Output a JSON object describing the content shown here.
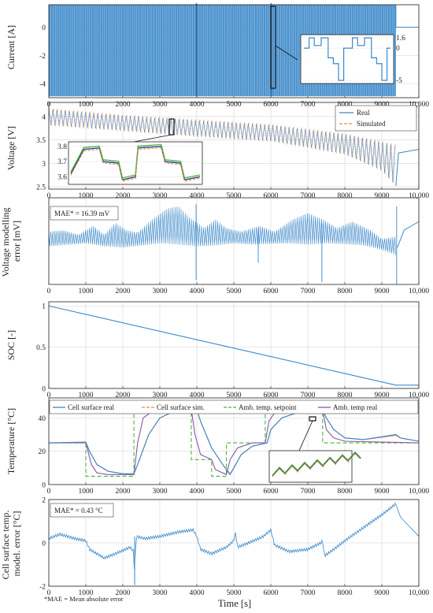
{
  "x_axis": {
    "label": "Time [s]",
    "range": [
      0,
      10000
    ],
    "ticks": [
      0,
      1000,
      2000,
      3000,
      4000,
      5000,
      6000,
      7000,
      8000,
      9000,
      10000
    ],
    "tick_labels": [
      "0",
      "1000",
      "2000",
      "3000",
      "4000",
      "5000",
      "6000",
      "7000",
      "8000",
      "9000",
      "10,000"
    ]
  },
  "footnote": "*MAE = Mean absolute error",
  "colors": {
    "real": "#3a87c9",
    "simulated": "#e8894f",
    "ambient_setpoint": "#49b33a",
    "ambient_real": "#8a55a7",
    "marker": "#111111"
  },
  "chart_data": [
    {
      "id": "current",
      "type": "line",
      "ylabel": "Current [A]",
      "ylim": [
        -5,
        1.6
      ],
      "yticks": [
        0,
        -2,
        -4
      ],
      "grid": true,
      "series": [
        {
          "name": "",
          "color": "#3a87c9",
          "points": [
            [
              0,
              1.6
            ],
            [
              9380,
              1.6
            ],
            [
              9380,
              0
            ],
            [
              10000,
              0
            ]
          ]
        }
      ],
      "profile": {
        "type": "pulsed_cycles",
        "x_end": 9380,
        "period_s": 58,
        "levels": [
          1.6,
          0,
          -1.5,
          -5
        ]
      },
      "inset": {
        "yticks": [
          1.6,
          0,
          -5
        ],
        "ytick_labels": [
          "1.6",
          "0",
          "-5"
        ],
        "zoom_x": [
          6040,
          6140
        ]
      }
    },
    {
      "id": "voltage",
      "type": "line",
      "ylabel": "Voltage [V]",
      "ylim": [
        2.45,
        4.3
      ],
      "yticks": [
        2.5,
        3,
        3.5,
        4
      ],
      "ytick_labels": [
        "2.5",
        "3",
        "3.5",
        "4"
      ],
      "grid": true,
      "legend": {
        "placement": "top-right",
        "entries": [
          "Real",
          "Simulated"
        ]
      },
      "series": [
        {
          "name": "Real",
          "color": "#3a87c9",
          "envelope_upper": [
            [
              0,
              4.16
            ],
            [
              2000,
              4.02
            ],
            [
              4000,
              3.92
            ],
            [
              6000,
              3.82
            ],
            [
              8000,
              3.62
            ],
            [
              9000,
              3.45
            ],
            [
              9380,
              3.38
            ]
          ],
          "envelope_lower": [
            [
              0,
              3.82
            ],
            [
              2000,
              3.7
            ],
            [
              4000,
              3.58
            ],
            [
              6000,
              3.48
            ],
            [
              8000,
              3.2
            ],
            [
              9000,
              2.85
            ],
            [
              9380,
              2.52
            ]
          ],
          "rest_points": [
            [
              9380,
              2.52
            ],
            [
              9450,
              3.22
            ],
            [
              10000,
              3.3
            ]
          ]
        },
        {
          "name": "Simulated",
          "color": "#e8894f"
        }
      ],
      "inset": {
        "yticks": [
          3.8,
          3.7,
          3.6
        ],
        "ytick_labels": [
          "3.8",
          "3.7",
          "3.6"
        ],
        "zoom_x": [
          3300,
          3400
        ],
        "real": [
          [
            0,
            3.62
          ],
          [
            0.1,
            3.78
          ],
          [
            0.22,
            3.79
          ],
          [
            0.25,
            3.7
          ],
          [
            0.37,
            3.69
          ],
          [
            0.4,
            3.58
          ],
          [
            0.5,
            3.6
          ],
          [
            0.52,
            3.79
          ],
          [
            0.7,
            3.8
          ],
          [
            0.73,
            3.7
          ],
          [
            0.85,
            3.69
          ],
          [
            0.88,
            3.58
          ],
          [
            1,
            3.6
          ]
        ]
      }
    },
    {
      "id": "voltage_error",
      "type": "line",
      "ylabel": "Voltage modelling error [mV]",
      "grid": true,
      "annotation": "MAE* = 16.39 mV",
      "envelope_upper": [
        [
          0,
          0.22
        ],
        [
          400,
          0.25
        ],
        [
          800,
          0.15
        ],
        [
          1200,
          0.35
        ],
        [
          1500,
          0.15
        ],
        [
          1800,
          0.42
        ],
        [
          2100,
          0.25
        ],
        [
          2400,
          0.2
        ],
        [
          2800,
          0.5
        ],
        [
          3200,
          0.75
        ],
        [
          3500,
          0.8
        ],
        [
          3800,
          0.55
        ],
        [
          4200,
          0.3
        ],
        [
          4500,
          0.5
        ],
        [
          4800,
          0.3
        ],
        [
          5200,
          0.22
        ],
        [
          5700,
          0.35
        ],
        [
          6100,
          0.22
        ],
        [
          6600,
          0.5
        ],
        [
          7000,
          0.65
        ],
        [
          7400,
          0.5
        ],
        [
          7800,
          0.3
        ],
        [
          8200,
          0.45
        ],
        [
          8700,
          0.25
        ],
        [
          9000,
          0.05
        ],
        [
          9380,
          0.1
        ]
      ],
      "envelope_lower": [
        [
          0,
          -0.12
        ],
        [
          600,
          -0.08
        ],
        [
          1000,
          -0.05
        ],
        [
          1500,
          -0.12
        ],
        [
          2000,
          -0.15
        ],
        [
          2500,
          -0.1
        ],
        [
          3000,
          -0.05
        ],
        [
          3500,
          -0.08
        ],
        [
          4000,
          -0.12
        ],
        [
          4500,
          -0.1
        ],
        [
          5000,
          -0.05
        ],
        [
          5500,
          -0.08
        ],
        [
          6000,
          -0.06
        ],
        [
          6500,
          -0.05
        ],
        [
          7000,
          -0.08
        ],
        [
          7500,
          -0.05
        ],
        [
          8000,
          -0.07
        ],
        [
          8500,
          -0.1
        ],
        [
          9000,
          -0.2
        ],
        [
          9380,
          -0.32
        ]
      ],
      "rest_points": [
        [
          9420,
          -0.15
        ],
        [
          9600,
          0.25
        ],
        [
          10000,
          0.45
        ]
      ]
    },
    {
      "id": "soc",
      "type": "line",
      "ylabel": "SOC [-]",
      "ylim": [
        0,
        1.05
      ],
      "yticks": [
        0,
        0.5,
        1
      ],
      "ytick_labels": [
        "0",
        "0.5",
        "1"
      ],
      "grid": true,
      "series": [
        {
          "name": "",
          "color": "#3a87c9",
          "points": [
            [
              0,
              1.0
            ],
            [
              9380,
              0.04
            ],
            [
              10000,
              0.04
            ]
          ]
        }
      ]
    },
    {
      "id": "temperature",
      "type": "line",
      "ylabel": "Temperature [°C]",
      "ylim": [
        0,
        52
      ],
      "yticks": [
        0,
        20,
        40
      ],
      "ytick_labels": [
        "0",
        "20",
        "40"
      ],
      "grid": true,
      "legend": {
        "placement": "top",
        "entries": [
          "Cell surface real",
          "Cell surface sim.",
          "Amb. temp. setpoint",
          "Amb. temp real"
        ]
      },
      "series": [
        {
          "name": "Cell surface real",
          "color": "#3a87c9",
          "points": [
            [
              0,
              25
            ],
            [
              1000,
              25.5
            ],
            [
              1100,
              20
            ],
            [
              1300,
              12
            ],
            [
              1600,
              8
            ],
            [
              2000,
              6.5
            ],
            [
              2300,
              6.5
            ],
            [
              2400,
              12
            ],
            [
              2700,
              30
            ],
            [
              3000,
              40
            ],
            [
              3400,
              44
            ],
            [
              3800,
              45
            ],
            [
              4000,
              45
            ],
            [
              4100,
              38
            ],
            [
              4400,
              22
            ],
            [
              4700,
              12
            ],
            [
              4900,
              6
            ],
            [
              5000,
              10
            ],
            [
              5200,
              18
            ],
            [
              5500,
              23
            ],
            [
              5900,
              25
            ],
            [
              6000,
              33
            ],
            [
              6300,
              40
            ],
            [
              6700,
              43
            ],
            [
              7200,
              44.5
            ],
            [
              7400,
              45
            ],
            [
              7500,
              40
            ],
            [
              7700,
              33
            ],
            [
              8000,
              28
            ],
            [
              8500,
              27
            ],
            [
              9380,
              30
            ],
            [
              9500,
              28
            ],
            [
              10000,
              26
            ]
          ]
        },
        {
          "name": "Cell surface sim.",
          "color": "#e8894f",
          "points": [
            [
              0,
              25
            ],
            [
              1000,
              25.3
            ],
            [
              1100,
              20
            ],
            [
              1300,
              12
            ],
            [
              1600,
              8
            ],
            [
              2000,
              6.5
            ],
            [
              2300,
              6.5
            ],
            [
              2400,
              12
            ],
            [
              2700,
              30
            ],
            [
              3000,
              40
            ],
            [
              3400,
              44
            ],
            [
              3800,
              45
            ],
            [
              4000,
              45
            ],
            [
              4100,
              38
            ],
            [
              4400,
              22
            ],
            [
              4700,
              12
            ],
            [
              4900,
              6.5
            ],
            [
              5000,
              10
            ],
            [
              5200,
              18
            ],
            [
              5500,
              23
            ],
            [
              5900,
              25
            ],
            [
              6000,
              33
            ],
            [
              6300,
              40
            ],
            [
              6700,
              43
            ],
            [
              7200,
              44.5
            ],
            [
              7400,
              45
            ],
            [
              7500,
              40
            ],
            [
              7700,
              33
            ],
            [
              8000,
              28
            ],
            [
              8500,
              27
            ],
            [
              9380,
              29.5
            ],
            [
              9500,
              28
            ],
            [
              10000,
              26
            ]
          ]
        },
        {
          "name": "Amb. temp. setpoint",
          "color": "#49b33a",
          "dashed": true,
          "points": [
            [
              0,
              25
            ],
            [
              1000,
              25
            ],
            [
              1000,
              5
            ],
            [
              2300,
              5
            ],
            [
              2300,
              45
            ],
            [
              3850,
              45
            ],
            [
              3850,
              15
            ],
            [
              4400,
              15
            ],
            [
              4400,
              5
            ],
            [
              4800,
              5
            ],
            [
              4800,
              25
            ],
            [
              5850,
              25
            ],
            [
              5850,
              45
            ],
            [
              7400,
              45
            ],
            [
              7400,
              25
            ],
            [
              10000,
              25
            ]
          ]
        },
        {
          "name": "Amb. temp real",
          "color": "#8a55a7",
          "points": [
            [
              0,
              25
            ],
            [
              1000,
              25
            ],
            [
              1150,
              12
            ],
            [
              1300,
              7
            ],
            [
              1600,
              6
            ],
            [
              2300,
              6
            ],
            [
              2400,
              25
            ],
            [
              2550,
              40
            ],
            [
              2800,
              44
            ],
            [
              3200,
              45
            ],
            [
              3850,
              45
            ],
            [
              3950,
              30
            ],
            [
              4100,
              18
            ],
            [
              4400,
              15
            ],
            [
              4500,
              9
            ],
            [
              4800,
              6
            ],
            [
              4900,
              15
            ],
            [
              5100,
              22
            ],
            [
              5500,
              25
            ],
            [
              5850,
              25
            ],
            [
              5950,
              38
            ],
            [
              6100,
              43
            ],
            [
              6500,
              45
            ],
            [
              7400,
              45
            ],
            [
              7500,
              33
            ],
            [
              7700,
              28
            ],
            [
              8000,
              26
            ],
            [
              10000,
              25
            ]
          ]
        }
      ],
      "inset": {
        "zoom_x": [
          7150,
          7230
        ]
      }
    },
    {
      "id": "surface_temp_error",
      "type": "line",
      "ylabel": "Cell surface temp. model. error [°C]",
      "ylim": [
        -2,
        2
      ],
      "yticks": [
        2,
        0,
        -2
      ],
      "ytick_labels": [
        "2",
        "0",
        "-2"
      ],
      "grid": true,
      "annotation": "MAE* = 0.43 °C",
      "series": [
        {
          "name": "",
          "color": "#3a87c9",
          "points": [
            [
              0,
              0.2
            ],
            [
              300,
              0.4
            ],
            [
              700,
              0.2
            ],
            [
              1000,
              0.1
            ],
            [
              1100,
              -0.3
            ],
            [
              1500,
              -0.7
            ],
            [
              1800,
              -0.5
            ],
            [
              2200,
              -0.2
            ],
            [
              2300,
              -0.4
            ],
            [
              2320,
              -1.9
            ],
            [
              2350,
              0.3
            ],
            [
              2600,
              0.2
            ],
            [
              3000,
              0.3
            ],
            [
              3500,
              0.5
            ],
            [
              3900,
              0.6
            ],
            [
              4000,
              0.3
            ],
            [
              4100,
              -0.3
            ],
            [
              4400,
              -0.5
            ],
            [
              4800,
              -0.2
            ],
            [
              5000,
              0.1
            ],
            [
              5050,
              0.5
            ],
            [
              5100,
              -0.2
            ],
            [
              5400,
              0.0
            ],
            [
              5800,
              0.3
            ],
            [
              6000,
              0.6
            ],
            [
              6100,
              -0.1
            ],
            [
              6500,
              -0.4
            ],
            [
              7000,
              -0.3
            ],
            [
              7350,
              0.0
            ],
            [
              7400,
              0.1
            ],
            [
              7450,
              -0.6
            ],
            [
              7700,
              -0.3
            ],
            [
              8000,
              0.1
            ],
            [
              8500,
              0.7
            ],
            [
              9000,
              1.3
            ],
            [
              9380,
              1.8
            ],
            [
              9500,
              1.2
            ],
            [
              10000,
              0.3
            ]
          ]
        }
      ]
    }
  ]
}
